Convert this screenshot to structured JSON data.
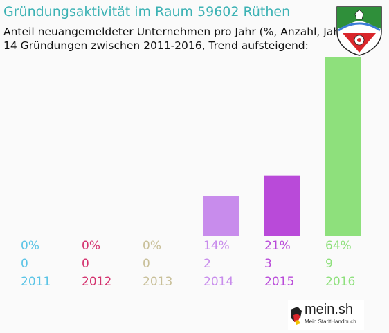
{
  "header": {
    "title": "Gründungsaktivität im Raum 59602 Rüthen",
    "subtitle_line1": "Anteil neuangemeldeter Unternehmen pro Jahr (%, Anzahl, Jahr)",
    "subtitle_line2": "14 Gründungen zwischen 2011-2016, Trend aufsteigend:"
  },
  "logo": {
    "name": "mein.sh",
    "tagline": "Mein StadtHandbuch"
  },
  "chart_data": {
    "type": "bar",
    "categories": [
      "2011",
      "2012",
      "2013",
      "2014",
      "2015",
      "2016"
    ],
    "values": [
      0,
      0,
      0,
      2,
      3,
      9
    ],
    "percent_labels": [
      "0%",
      "0%",
      "0%",
      "14%",
      "21%",
      "64%"
    ],
    "count_labels": [
      "0",
      "0",
      "0",
      "2",
      "3",
      "9"
    ],
    "colors": [
      "#5bc4e6",
      "#d4326e",
      "#c8bf98",
      "#c88cec",
      "#b94ad9",
      "#8ee07c"
    ],
    "ylim": [
      0,
      9
    ]
  }
}
